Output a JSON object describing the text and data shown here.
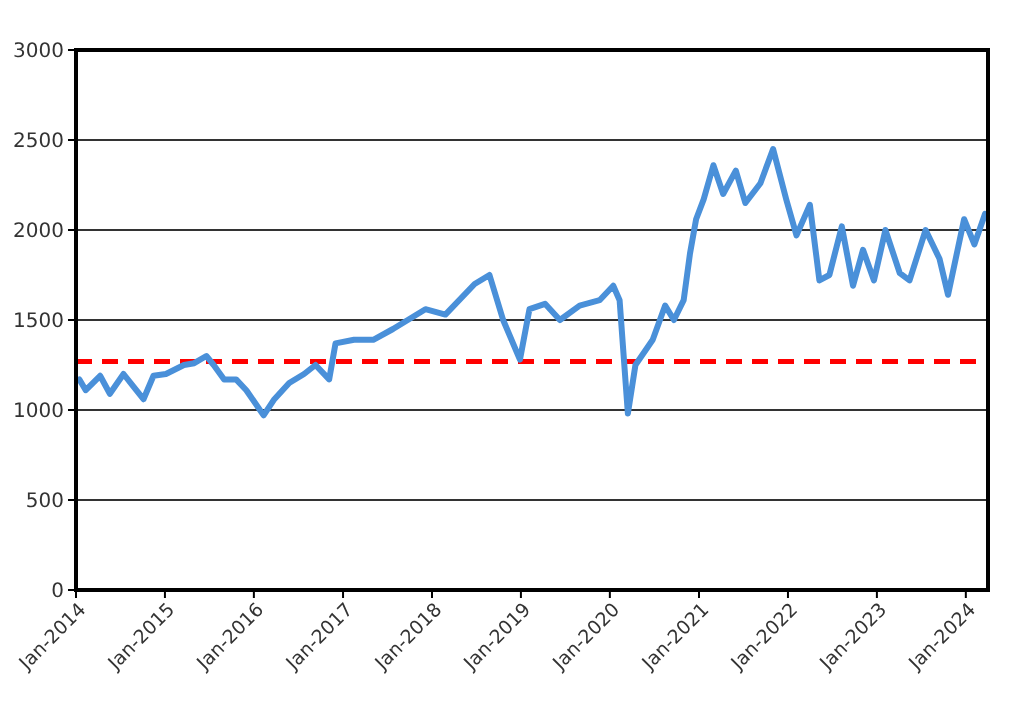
{
  "chart_data": {
    "type": "line",
    "grid": "y",
    "marker": "none",
    "line_style": "solid",
    "xlim": [
      "2014-01-01",
      "2024-04-01"
    ],
    "xticks": [
      {
        "value": "2014-01-01",
        "label": "Jan-2014"
      },
      {
        "value": "2015-01-01",
        "label": "Jan-2015"
      },
      {
        "value": "2016-01-01",
        "label": "Jan-2016"
      },
      {
        "value": "2017-01-01",
        "label": "Jan-2017"
      },
      {
        "value": "2018-01-01",
        "label": "Jan-2018"
      },
      {
        "value": "2019-01-01",
        "label": "Jan-2019"
      },
      {
        "value": "2020-01-01",
        "label": "Jan-2020"
      },
      {
        "value": "2021-01-01",
        "label": "Jan-2021"
      },
      {
        "value": "2022-01-01",
        "label": "Jan-2022"
      },
      {
        "value": "2023-01-01",
        "label": "Jan-2023"
      },
      {
        "value": "2024-01-01",
        "label": "Jan-2024"
      }
    ],
    "ylim": [
      0,
      3000
    ],
    "yticks": [
      0,
      500,
      1000,
      1500,
      2000,
      2500,
      3000
    ],
    "ref_lines": [
      {
        "axis": "y",
        "value": 1270,
        "color": "#ff0000",
        "line_style": "dashed"
      }
    ],
    "series": [
      {
        "color": "#4a90d9",
        "x": [
          "2014-01-15",
          "2014-02-10",
          "2014-04-10",
          "2014-05-20",
          "2014-07-15",
          "2014-08-25",
          "2014-10-05",
          "2014-11-15",
          "2015-01-05",
          "2015-03-20",
          "2015-05-01",
          "2015-06-20",
          "2015-07-20",
          "2015-09-01",
          "2015-10-20",
          "2015-12-01",
          "2016-02-10",
          "2016-03-25",
          "2016-05-25",
          "2016-07-25",
          "2016-09-10",
          "2016-11-05",
          "2016-12-01",
          "2017-02-15",
          "2017-05-05",
          "2017-07-25",
          "2017-12-05",
          "2018-02-25",
          "2018-06-25",
          "2018-08-25",
          "2018-10-20",
          "2018-12-28",
          "2019-02-05",
          "2019-04-10",
          "2019-06-10",
          "2019-08-30",
          "2019-11-20",
          "2020-01-15",
          "2020-02-10",
          "2020-03-15",
          "2020-04-15",
          "2020-06-25",
          "2020-08-15",
          "2020-09-20",
          "2020-10-30",
          "2020-11-25",
          "2020-12-20",
          "2021-01-20",
          "2021-03-01",
          "2021-04-10",
          "2021-06-01",
          "2021-07-10",
          "2021-09-10",
          "2021-11-01",
          "2021-12-25",
          "2022-02-05",
          "2022-04-01",
          "2022-05-10",
          "2022-06-20",
          "2022-08-10",
          "2022-09-25",
          "2022-11-05",
          "2022-12-20",
          "2023-02-05",
          "2023-04-05",
          "2023-05-15",
          "2023-07-20",
          "2023-09-15",
          "2023-10-20",
          "2023-12-25",
          "2024-02-05",
          "2024-03-20"
        ],
        "values": [
          1170,
          1110,
          1190,
          1090,
          1200,
          1130,
          1060,
          1190,
          1200,
          1250,
          1260,
          1300,
          1250,
          1170,
          1170,
          1110,
          970,
          1060,
          1150,
          1200,
          1250,
          1170,
          1370,
          1390,
          1390,
          1450,
          1560,
          1530,
          1700,
          1750,
          1500,
          1280,
          1560,
          1590,
          1500,
          1580,
          1610,
          1690,
          1610,
          980,
          1250,
          1390,
          1580,
          1500,
          1610,
          1870,
          2060,
          2170,
          2360,
          2200,
          2330,
          2150,
          2260,
          2450,
          2170,
          1970,
          2140,
          1720,
          1750,
          2020,
          1690,
          1890,
          1720,
          2000,
          1760,
          1720,
          2000,
          1840,
          1640,
          2060,
          1920,
          2090
        ]
      }
    ]
  }
}
